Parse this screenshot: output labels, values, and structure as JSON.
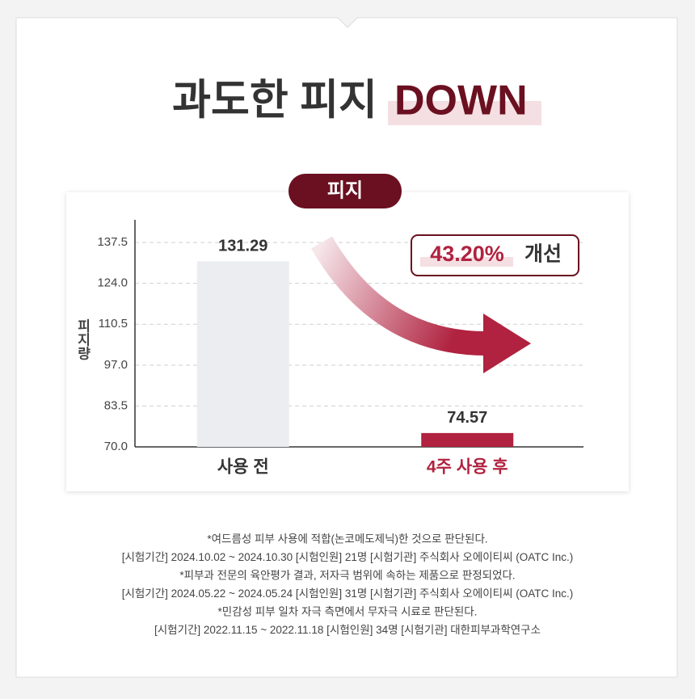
{
  "chart_data": {
    "type": "bar",
    "title": "과도한 피지",
    "title_highlight": "DOWN",
    "badge": "피지",
    "y_label": "피지량",
    "categories": [
      "사용 전",
      "4주 사용 후"
    ],
    "values": [
      131.29,
      74.57
    ],
    "colors": [
      "#ecedf1",
      "#b0223f"
    ],
    "category_colors": [
      "#333333",
      "#b0223f"
    ],
    "ylim": [
      70,
      145
    ],
    "yticks": [
      {
        "value": 70,
        "label": "70.0"
      },
      83.5,
      {
        "value": 97,
        "label": "97.0"
      },
      110.5,
      {
        "value": 124,
        "label": "124.0"
      },
      137.5
    ],
    "grid": true,
    "annotation": {
      "percent": "43.20%",
      "text": "개선"
    },
    "footnotes": [
      "*여드름성 피부 사용에 적합(논코메도제닉)한 것으로 판단된다.",
      "[시험기간] 2024.10.02 ~ 2024.10.30 [시험인원]  21명 [시험기관] 주식회사 오에이티씨 (OATC Inc.)",
      "*피부과 전문의 육안평가 결과, 저자극 범위에 속하는 제품으로 판정되었다.",
      "[시험기간]  2024.05.22 ~ 2024.05.24 [시험인원]  31명 [시험기관] 주식회사 오에이티씨 (OATC Inc.)",
      "*민감성 피부 일차 자극 측면에서 무자극 시료로 판단된다.",
      "[시험기간]  2022.11.15 ~ 2022.11.18 [시험인원]  34명 [시험기관] 대한피부과학연구소"
    ]
  }
}
